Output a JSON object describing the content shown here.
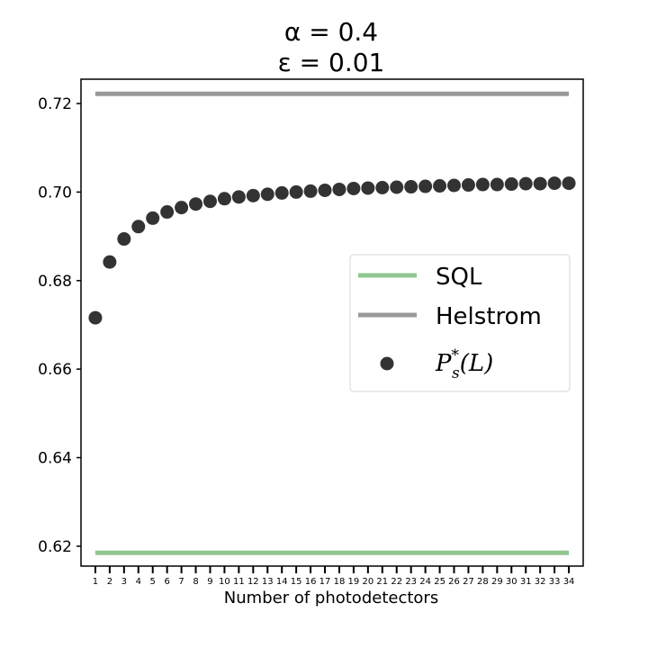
{
  "chart_data": {
    "type": "scatter",
    "title_lines": [
      "α = 0.4",
      "ε = 0.01"
    ],
    "xlabel": "Number of photodetectors",
    "ylabel": "",
    "x": [
      1,
      2,
      3,
      4,
      5,
      6,
      7,
      8,
      9,
      10,
      11,
      12,
      13,
      14,
      15,
      16,
      17,
      18,
      19,
      20,
      21,
      22,
      23,
      24,
      25,
      26,
      27,
      28,
      29,
      30,
      31,
      32,
      33,
      34
    ],
    "xlim": [
      0,
      35
    ],
    "ylim": [
      0.6155,
      0.7255
    ],
    "yticks": [
      0.62,
      0.64,
      0.66,
      0.68,
      0.7,
      0.72
    ],
    "ytick_labels": [
      "0.62",
      "0.64",
      "0.66",
      "0.68",
      "0.70",
      "0.72"
    ],
    "grid": false,
    "legend_position": "center-right",
    "series": [
      {
        "name": "SQL",
        "kind": "hline",
        "value": 0.6185,
        "color": "#90c690"
      },
      {
        "name": "Helstrom",
        "kind": "hline",
        "value": 0.7222,
        "color": "#999999"
      },
      {
        "name_parts": {
          "base": "P",
          "sub": "s",
          "sup": "*",
          "arg": "(L)"
        },
        "kind": "points",
        "color": "#333333",
        "values": [
          0.6716,
          0.6842,
          0.6894,
          0.6922,
          0.6941,
          0.6955,
          0.6965,
          0.6973,
          0.6979,
          0.6985,
          0.6989,
          0.6992,
          0.6995,
          0.6998,
          0.7,
          0.7002,
          0.7004,
          0.7006,
          0.7008,
          0.7009,
          0.701,
          0.7011,
          0.7012,
          0.7013,
          0.7014,
          0.7015,
          0.7016,
          0.7017,
          0.7017,
          0.7018,
          0.7019,
          0.7019,
          0.702,
          0.702
        ]
      }
    ]
  }
}
